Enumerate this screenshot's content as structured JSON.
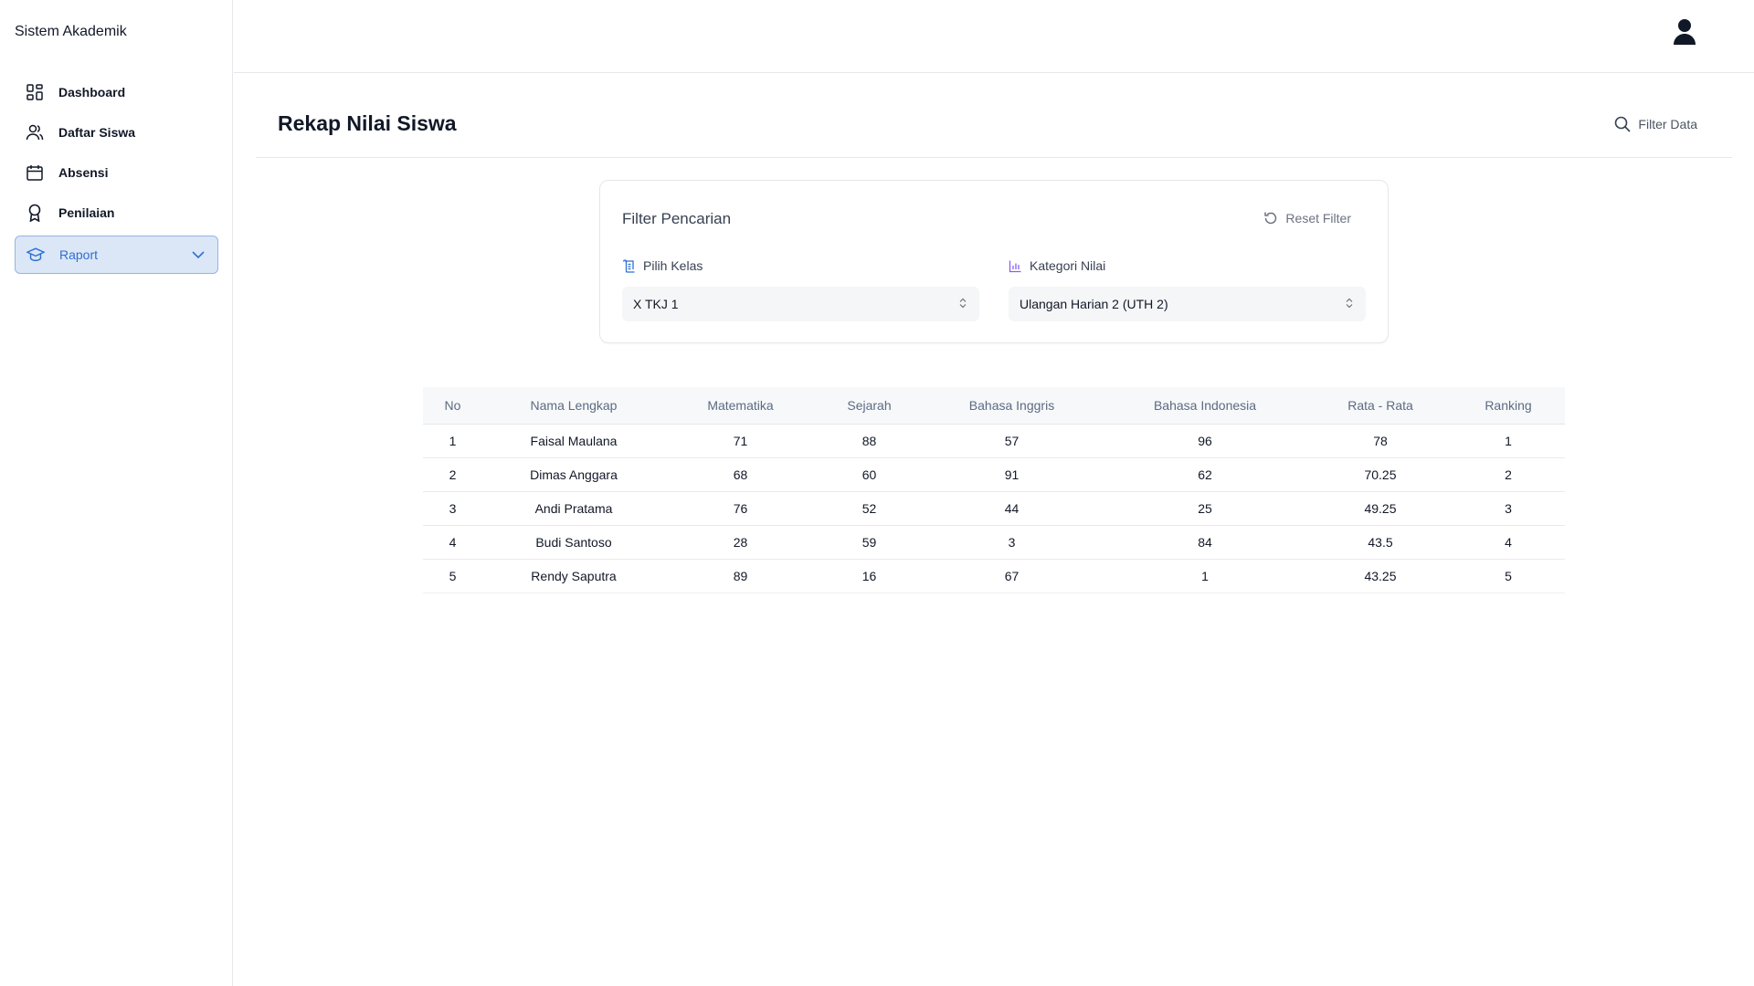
{
  "app": {
    "title": "Sistem Akademik"
  },
  "sidebar": {
    "items": [
      {
        "label": "Dashboard",
        "icon": "dashboard-icon"
      },
      {
        "label": "Daftar Siswa",
        "icon": "users-icon"
      },
      {
        "label": "Absensi",
        "icon": "calendar-icon"
      },
      {
        "label": "Penilaian",
        "icon": "award-icon"
      },
      {
        "label": "Raport",
        "icon": "graduation-cap-icon",
        "active": true
      }
    ]
  },
  "header": {
    "avatar_icon": "user-icon"
  },
  "page": {
    "title": "Rekap Nilai Siswa",
    "filter_data_label": "Filter Data"
  },
  "filter": {
    "title": "Filter Pencarian",
    "reset_label": "Reset Filter",
    "kelas": {
      "label": "Pilih Kelas",
      "value": "X TKJ 1"
    },
    "kategori": {
      "label": "Kategori Nilai",
      "value": "Ulangan Harian 2 (UTH 2)"
    }
  },
  "table": {
    "headers": [
      "No",
      "Nama Lengkap",
      "Matematika",
      "Sejarah",
      "Bahasa Inggris",
      "Bahasa Indonesia",
      "Rata - Rata",
      "Ranking"
    ],
    "rows": [
      [
        "1",
        "Faisal Maulana",
        "71",
        "88",
        "57",
        "96",
        "78",
        "1"
      ],
      [
        "2",
        "Dimas Anggara",
        "68",
        "60",
        "91",
        "62",
        "70.25",
        "2"
      ],
      [
        "3",
        "Andi Pratama",
        "76",
        "52",
        "44",
        "25",
        "49.25",
        "3"
      ],
      [
        "4",
        "Budi Santoso",
        "28",
        "59",
        "3",
        "84",
        "43.5",
        "4"
      ],
      [
        "5",
        "Rendy Saputra",
        "89",
        "16",
        "67",
        "1",
        "43.25",
        "5"
      ]
    ]
  },
  "colors": {
    "accent": "#2f6fd1",
    "active_bg": "#dbe7f7",
    "header_text": "#5b6b82"
  }
}
